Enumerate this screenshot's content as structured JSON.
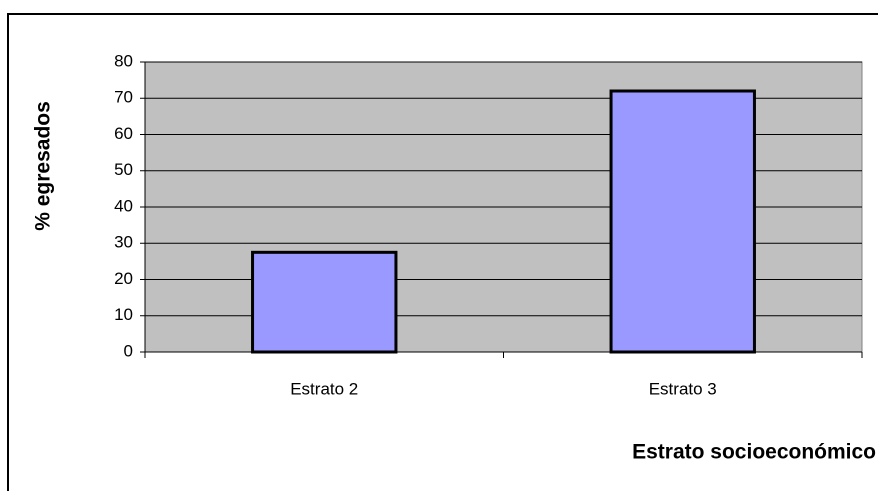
{
  "chart_data": {
    "type": "bar",
    "categories": [
      "Estrato 2",
      "Estrato 3"
    ],
    "values": [
      27.5,
      72
    ],
    "color": "#9999ff",
    "plot_background": "#c0c0c0",
    "ylim": [
      0,
      80
    ],
    "yticks": [
      0,
      10,
      20,
      30,
      40,
      50,
      60,
      70,
      80
    ],
    "grid": true,
    "x_label": "Estrato socioeconómico",
    "y_label": "% egresados"
  }
}
